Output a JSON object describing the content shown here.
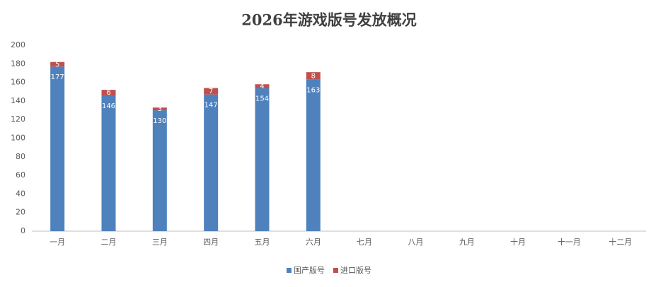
{
  "chart_data": {
    "type": "stacked-bar",
    "title": "2026年游戏版号发放概况",
    "categories": [
      "一月",
      "二月",
      "三月",
      "四月",
      "五月",
      "六月",
      "七月",
      "八月",
      "九月",
      "十月",
      "十一月",
      "十二月"
    ],
    "series": [
      {
        "name": "国产版号",
        "color": "#4f81bd",
        "values": [
          177,
          146,
          130,
          147,
          154,
          163,
          null,
          null,
          null,
          null,
          null,
          null
        ]
      },
      {
        "name": "进口版号",
        "color": "#c0504d",
        "values": [
          5,
          6,
          3,
          7,
          4,
          8,
          null,
          null,
          null,
          null,
          null,
          null
        ]
      }
    ],
    "ylim": [
      0,
      200
    ],
    "yticks": [
      0,
      20,
      40,
      60,
      80,
      100,
      120,
      140,
      160,
      180,
      200
    ],
    "grid": false,
    "legend": "bottom"
  }
}
